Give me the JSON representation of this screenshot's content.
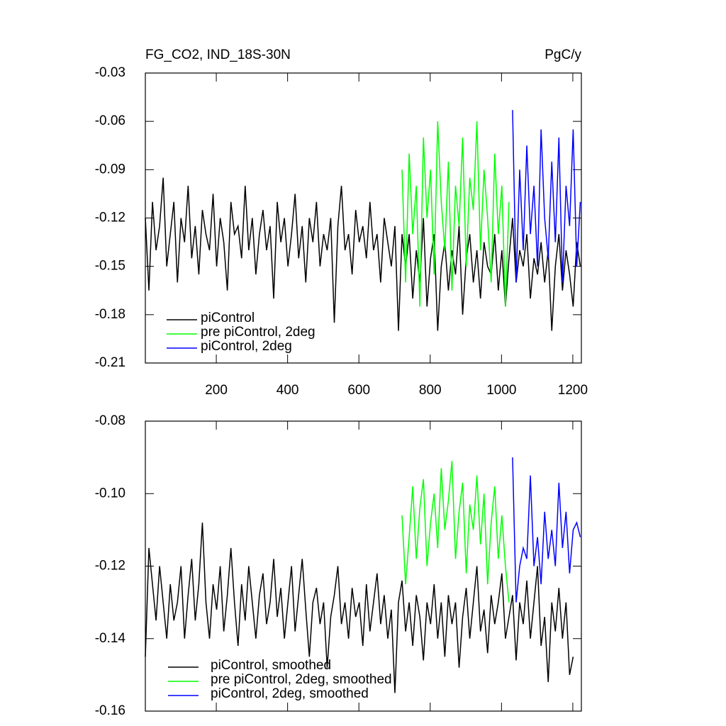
{
  "chart_data": [
    {
      "type": "line",
      "title": "FG_CO2, IND_18S-30N",
      "units": "PgC/y",
      "xlim": [
        1,
        1224
      ],
      "ylim": [
        -0.21,
        -0.03
      ],
      "xticks": [
        200,
        400,
        600,
        800,
        1000,
        1200
      ],
      "x_tick_labels": true,
      "yticks": [
        -0.03,
        -0.06,
        -0.09,
        -0.12,
        -0.15,
        -0.18,
        -0.21
      ],
      "legend": "lower left",
      "series": [
        {
          "name": "piControl",
          "color": "#000000",
          "x": [
            1,
            11,
            21,
            31,
            41,
            51,
            61,
            71,
            81,
            91,
            101,
            111,
            121,
            131,
            141,
            151,
            161,
            171,
            181,
            191,
            201,
            211,
            221,
            231,
            241,
            251,
            261,
            271,
            281,
            291,
            301,
            311,
            321,
            331,
            341,
            351,
            361,
            371,
            381,
            391,
            401,
            411,
            421,
            431,
            441,
            451,
            461,
            471,
            481,
            491,
            501,
            511,
            521,
            531,
            541,
            551,
            561,
            571,
            581,
            591,
            601,
            611,
            621,
            631,
            641,
            651,
            661,
            671,
            681,
            691,
            701,
            711,
            721,
            731,
            741,
            751,
            761,
            771,
            781,
            791,
            801,
            811,
            821,
            831,
            841,
            851,
            861,
            871,
            881,
            891,
            901,
            911,
            921,
            931,
            941,
            951,
            961,
            971,
            981,
            991,
            1001,
            1011,
            1021,
            1031,
            1041,
            1051,
            1061,
            1071,
            1081,
            1091,
            1101,
            1111,
            1121,
            1131,
            1141,
            1151,
            1161,
            1171,
            1181,
            1191,
            1201,
            1211,
            1221
          ],
          "values": [
            -0.12,
            -0.165,
            -0.11,
            -0.14,
            -0.125,
            -0.095,
            -0.15,
            -0.13,
            -0.11,
            -0.16,
            -0.12,
            -0.135,
            -0.1,
            -0.145,
            -0.125,
            -0.155,
            -0.115,
            -0.13,
            -0.14,
            -0.105,
            -0.15,
            -0.12,
            -0.135,
            -0.165,
            -0.11,
            -0.13,
            -0.125,
            -0.145,
            -0.1,
            -0.14,
            -0.12,
            -0.155,
            -0.13,
            -0.115,
            -0.14,
            -0.125,
            -0.17,
            -0.11,
            -0.135,
            -0.12,
            -0.15,
            -0.13,
            -0.105,
            -0.145,
            -0.125,
            -0.16,
            -0.12,
            -0.135,
            -0.11,
            -0.15,
            -0.13,
            -0.14,
            -0.12,
            -0.185,
            -0.125,
            -0.1,
            -0.14,
            -0.13,
            -0.155,
            -0.115,
            -0.135,
            -0.125,
            -0.145,
            -0.11,
            -0.14,
            -0.13,
            -0.16,
            -0.12,
            -0.135,
            -0.15,
            -0.125,
            -0.19,
            -0.13,
            -0.15,
            -0.13,
            -0.17,
            -0.14,
            -0.16,
            -0.12,
            -0.175,
            -0.145,
            -0.13,
            -0.19,
            -0.15,
            -0.135,
            -0.165,
            -0.14,
            -0.155,
            -0.125,
            -0.18,
            -0.145,
            -0.13,
            -0.16,
            -0.14,
            -0.17,
            -0.135,
            -0.15,
            -0.155,
            -0.13,
            -0.165,
            -0.14,
            -0.175,
            -0.145,
            -0.12,
            -0.16,
            -0.14,
            -0.15,
            -0.13,
            -0.17,
            -0.145,
            -0.155,
            -0.135,
            -0.16,
            -0.14,
            -0.19,
            -0.15,
            -0.13,
            -0.165,
            -0.14,
            -0.155,
            -0.175,
            -0.135,
            -0.15
          ]
        },
        {
          "name": "pre piControl, 2deg",
          "color": "#00ff00",
          "x": [
            721,
            731,
            741,
            751,
            761,
            771,
            781,
            791,
            801,
            811,
            821,
            831,
            841,
            851,
            861,
            871,
            881,
            891,
            901,
            911,
            921,
            931,
            941,
            951,
            961,
            971,
            981,
            991,
            1001,
            1011,
            1021
          ],
          "values": [
            -0.09,
            -0.16,
            -0.08,
            -0.13,
            -0.1,
            -0.175,
            -0.07,
            -0.12,
            -0.09,
            -0.155,
            -0.06,
            -0.11,
            -0.14,
            -0.085,
            -0.165,
            -0.1,
            -0.125,
            -0.07,
            -0.15,
            -0.095,
            -0.115,
            -0.06,
            -0.14,
            -0.09,
            -0.12,
            -0.16,
            -0.08,
            -0.13,
            -0.1,
            -0.175,
            -0.11
          ]
        },
        {
          "name": "piControl, 2deg",
          "color": "#0000ff",
          "x": [
            1031,
            1041,
            1051,
            1061,
            1071,
            1081,
            1091,
            1101,
            1111,
            1121,
            1131,
            1141,
            1151,
            1161,
            1171,
            1181,
            1191,
            1201,
            1211,
            1221
          ],
          "values": [
            -0.053,
            -0.16,
            -0.09,
            -0.14,
            -0.075,
            -0.13,
            -0.1,
            -0.15,
            -0.065,
            -0.12,
            -0.145,
            -0.085,
            -0.135,
            -0.07,
            -0.16,
            -0.1,
            -0.125,
            -0.065,
            -0.15,
            -0.11
          ]
        }
      ]
    },
    {
      "type": "line",
      "xlim": [
        1,
        1224
      ],
      "ylim": [
        -0.16,
        -0.08
      ],
      "xticks": [
        200,
        400,
        600,
        800,
        1000,
        1200
      ],
      "x_tick_labels": false,
      "yticks": [
        -0.08,
        {
          "value": -0.1,
          "label": "-0.10"
        },
        -0.12,
        -0.14,
        -0.16
      ],
      "legend": "lower left",
      "series": [
        {
          "name": "piControl, smoothed",
          "color": "#000000",
          "x": [
            1,
            11,
            21,
            31,
            41,
            51,
            61,
            71,
            81,
            91,
            101,
            111,
            121,
            131,
            141,
            151,
            161,
            171,
            181,
            191,
            201,
            211,
            221,
            231,
            241,
            251,
            261,
            271,
            281,
            291,
            301,
            311,
            321,
            331,
            341,
            351,
            361,
            371,
            381,
            391,
            401,
            411,
            421,
            431,
            441,
            451,
            461,
            471,
            481,
            491,
            501,
            511,
            521,
            531,
            541,
            551,
            561,
            571,
            581,
            591,
            601,
            611,
            621,
            631,
            641,
            651,
            661,
            671,
            681,
            691,
            701,
            711,
            721,
            731,
            741,
            751,
            761,
            771,
            781,
            791,
            801,
            811,
            821,
            831,
            841,
            851,
            861,
            871,
            881,
            891,
            901,
            911,
            921,
            931,
            941,
            951,
            961,
            971,
            981,
            991,
            1001,
            1011,
            1021,
            1031,
            1041,
            1051,
            1061,
            1071,
            1081,
            1091,
            1101,
            1111,
            1121,
            1131,
            1141,
            1151,
            1161,
            1171,
            1181,
            1191,
            1201
          ],
          "values": [
            -0.145,
            -0.115,
            -0.125,
            -0.135,
            -0.12,
            -0.13,
            -0.14,
            -0.125,
            -0.135,
            -0.13,
            -0.12,
            -0.14,
            -0.128,
            -0.118,
            -0.135,
            -0.125,
            -0.108,
            -0.13,
            -0.14,
            -0.125,
            -0.132,
            -0.12,
            -0.138,
            -0.128,
            -0.115,
            -0.13,
            -0.142,
            -0.125,
            -0.135,
            -0.12,
            -0.13,
            -0.14,
            -0.128,
            -0.122,
            -0.136,
            -0.13,
            -0.118,
            -0.134,
            -0.126,
            -0.14,
            -0.13,
            -0.12,
            -0.138,
            -0.128,
            -0.118,
            -0.132,
            -0.145,
            -0.13,
            -0.126,
            -0.136,
            -0.13,
            -0.148,
            -0.134,
            -0.128,
            -0.12,
            -0.136,
            -0.13,
            -0.14,
            -0.126,
            -0.134,
            -0.13,
            -0.142,
            -0.125,
            -0.138,
            -0.13,
            -0.122,
            -0.136,
            -0.128,
            -0.14,
            -0.132,
            -0.155,
            -0.13,
            -0.124,
            -0.138,
            -0.13,
            -0.142,
            -0.128,
            -0.134,
            -0.146,
            -0.13,
            -0.136,
            -0.125,
            -0.14,
            -0.13,
            -0.145,
            -0.128,
            -0.136,
            -0.13,
            -0.148,
            -0.134,
            -0.126,
            -0.14,
            -0.13,
            -0.12,
            -0.138,
            -0.132,
            -0.144,
            -0.128,
            -0.136,
            -0.13,
            -0.122,
            -0.14,
            -0.134,
            -0.128,
            -0.146,
            -0.13,
            -0.136,
            -0.124,
            -0.14,
            -0.13,
            -0.12,
            -0.142,
            -0.134,
            -0.152,
            -0.13,
            -0.138,
            -0.126,
            -0.14,
            -0.13,
            -0.15,
            -0.145
          ]
        },
        {
          "name": "pre piControl, 2deg, smoothed",
          "color": "#00ff00",
          "x": [
            721,
            731,
            741,
            751,
            761,
            771,
            781,
            791,
            801,
            811,
            821,
            831,
            841,
            851,
            861,
            871,
            881,
            891,
            901,
            911,
            921,
            931,
            941,
            951,
            961,
            971,
            981,
            991,
            1001,
            1011,
            1021
          ],
          "values": [
            -0.106,
            -0.125,
            -0.112,
            -0.098,
            -0.118,
            -0.104,
            -0.096,
            -0.12,
            -0.108,
            -0.1,
            -0.115,
            -0.093,
            -0.11,
            -0.102,
            -0.091,
            -0.118,
            -0.105,
            -0.097,
            -0.122,
            -0.103,
            -0.11,
            -0.095,
            -0.114,
            -0.1,
            -0.125,
            -0.108,
            -0.098,
            -0.118,
            -0.106,
            -0.12,
            -0.13
          ]
        },
        {
          "name": "piControl, 2deg, smoothed",
          "color": "#0000ff",
          "x": [
            1031,
            1041,
            1051,
            1061,
            1071,
            1081,
            1091,
            1101,
            1111,
            1121,
            1131,
            1141,
            1151,
            1161,
            1171,
            1181,
            1191,
            1201,
            1211,
            1221
          ],
          "values": [
            -0.09,
            -0.13,
            -0.12,
            -0.115,
            -0.118,
            -0.095,
            -0.12,
            -0.112,
            -0.125,
            -0.105,
            -0.118,
            -0.11,
            -0.12,
            -0.097,
            -0.115,
            -0.105,
            -0.122,
            -0.11,
            -0.108,
            -0.112
          ]
        }
      ]
    }
  ]
}
